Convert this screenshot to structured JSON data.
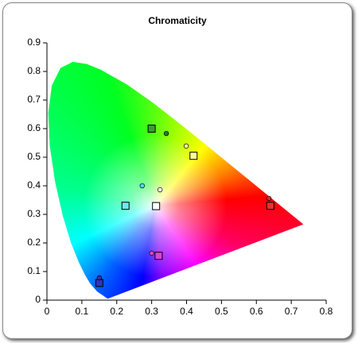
{
  "chart_data": {
    "type": "scatter",
    "title": "Chromaticity",
    "xlim": [
      0,
      0.8
    ],
    "ylim": [
      0,
      0.9
    ],
    "xticks": [
      0,
      0.1,
      0.2,
      0.3,
      0.4,
      0.5,
      0.6,
      0.7,
      0.8
    ],
    "yticks": [
      0,
      0.1,
      0.2,
      0.3,
      0.4,
      0.5,
      0.6,
      0.7,
      0.8,
      0.9
    ],
    "series": [
      {
        "marker": "square",
        "x": [
          0.3,
          0.42,
          0.225,
          0.3127,
          0.64,
          0.32,
          0.15
        ],
        "values": [
          0.6,
          0.505,
          0.33,
          0.329,
          0.33,
          0.155,
          0.06
        ],
        "colors": [
          "#3c9a3c",
          "#ffff9a",
          "#6fe8f0",
          "#ffffff",
          "#e83030",
          "#e040e0",
          "#3030c8"
        ]
      },
      {
        "marker": "circle",
        "x": [
          0.342,
          0.399,
          0.273,
          0.324,
          0.636,
          0.3,
          0.15
        ],
        "values": [
          0.583,
          0.539,
          0.4,
          0.386,
          0.356,
          0.164,
          0.078
        ],
        "colors": [
          "#2a7a2a",
          "#ffffa0",
          "#40e0f0",
          "#ffffff",
          "#d03040",
          "#e040e0",
          "#3030b0"
        ]
      }
    ]
  }
}
